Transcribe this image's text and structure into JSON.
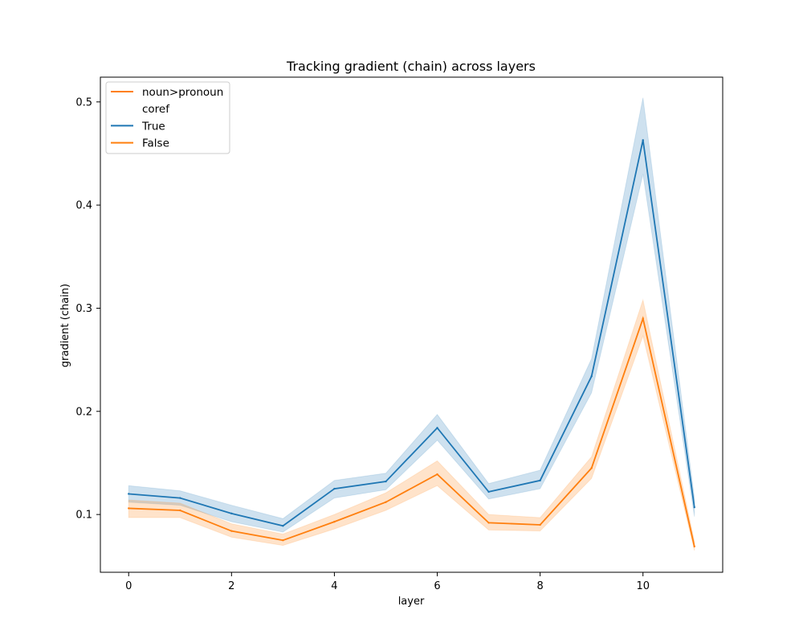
{
  "chart_data": {
    "type": "line",
    "title": "Tracking gradient (chain) across layers",
    "xlabel": "layer",
    "ylabel": "gradient (chain)",
    "xlim": [
      -0.55,
      11.55
    ],
    "ylim": [
      0.044,
      0.524
    ],
    "xticks": [
      0,
      2,
      4,
      6,
      8,
      10
    ],
    "xtick_labels": [
      "0",
      "2",
      "4",
      "6",
      "8",
      "10"
    ],
    "yticks": [
      0.1,
      0.2,
      0.3,
      0.4,
      0.5
    ],
    "ytick_labels": [
      "0.1",
      "0.2",
      "0.3",
      "0.4",
      "0.5"
    ],
    "grid": false,
    "legend": {
      "placement": "top-left",
      "entries": [
        {
          "label": "noun>pronoun",
          "color": "#ff7f0e",
          "swatch": true
        },
        {
          "label": "coref",
          "color": "",
          "swatch": false
        },
        {
          "label": "True",
          "color": "#1f77b4",
          "swatch": true
        },
        {
          "label": "False",
          "color": "#ff7f0e",
          "swatch": true
        }
      ]
    },
    "x": [
      0,
      1,
      2,
      3,
      4,
      5,
      6,
      7,
      8,
      9,
      10,
      11
    ],
    "series": [
      {
        "name": "True",
        "color": "#1f77b4",
        "values": [
          0.12,
          0.116,
          0.101,
          0.089,
          0.125,
          0.132,
          0.184,
          0.122,
          0.133,
          0.234,
          0.463,
          0.107
        ],
        "lower": [
          0.112,
          0.109,
          0.093,
          0.083,
          0.116,
          0.124,
          0.172,
          0.115,
          0.125,
          0.218,
          0.43,
          0.098
        ],
        "upper": [
          0.128,
          0.123,
          0.109,
          0.096,
          0.133,
          0.14,
          0.197,
          0.13,
          0.143,
          0.251,
          0.504,
          0.116
        ]
      },
      {
        "name": "False",
        "color": "#ff7f0e",
        "values": [
          0.106,
          0.104,
          0.084,
          0.075,
          0.093,
          0.112,
          0.139,
          0.092,
          0.09,
          0.145,
          0.29,
          0.069
        ],
        "lower": [
          0.097,
          0.097,
          0.078,
          0.07,
          0.086,
          0.104,
          0.128,
          0.085,
          0.084,
          0.135,
          0.273,
          0.065
        ],
        "upper": [
          0.114,
          0.111,
          0.091,
          0.081,
          0.1,
          0.121,
          0.152,
          0.1,
          0.097,
          0.156,
          0.308,
          0.074
        ]
      }
    ]
  }
}
